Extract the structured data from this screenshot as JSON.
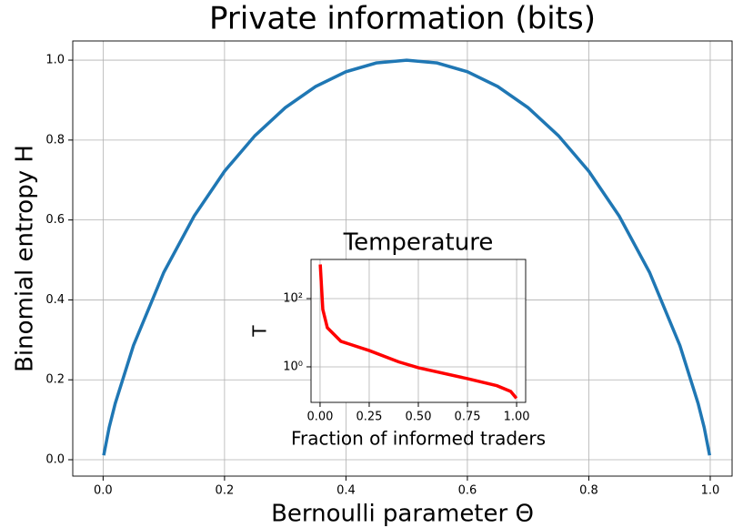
{
  "chart_data": [
    {
      "type": "line",
      "title": "Private information (bits)",
      "xlabel": "Bernoulli parameter Θ",
      "ylabel": "Binomial entropy H",
      "x": [
        0.001,
        0.01,
        0.02,
        0.05,
        0.1,
        0.15,
        0.2,
        0.25,
        0.3,
        0.35,
        0.4,
        0.45,
        0.5,
        0.55,
        0.6,
        0.65,
        0.7,
        0.75,
        0.8,
        0.85,
        0.9,
        0.95,
        0.98,
        0.99,
        0.999
      ],
      "values": [
        0.011,
        0.081,
        0.141,
        0.286,
        0.469,
        0.61,
        0.722,
        0.811,
        0.881,
        0.934,
        0.971,
        0.993,
        1.0,
        0.993,
        0.971,
        0.934,
        0.881,
        0.811,
        0.722,
        0.61,
        0.469,
        0.286,
        0.141,
        0.081,
        0.011
      ],
      "color": "#1f77b4",
      "grid": true,
      "xlim": [
        -0.05,
        1.036
      ],
      "ylim": [
        -0.041,
        1.048
      ],
      "xticks": [
        {
          "value": 0,
          "label": "0.0"
        },
        0.2,
        0.4,
        0.6,
        0.8,
        {
          "value": 1,
          "label": "1.0"
        }
      ],
      "yticks": [
        {
          "value": 0,
          "label": "0.0"
        },
        0.2,
        0.4,
        0.6,
        0.8,
        {
          "value": 1,
          "label": "1.0"
        }
      ]
    },
    {
      "type": "line",
      "title": "Temperature",
      "xlabel": "Fraction of informed traders",
      "ylabel": "T",
      "x": [
        0.001,
        0.014,
        0.037,
        0.106,
        0.25,
        0.4,
        0.5,
        0.75,
        0.9,
        0.97,
        0.999
      ],
      "values": [
        1000,
        48,
        14,
        5.6,
        3.0,
        1.4,
        0.94,
        0.45,
        0.28,
        0.19,
        0.12
      ],
      "color": "#ff0000",
      "grid": true,
      "ylog": true,
      "xlim": [
        -0.046,
        1.046
      ],
      "ylim": [
        0.091,
        1400
      ],
      "xticks": [
        {
          "value": 0,
          "label": "0.00"
        },
        0.25,
        {
          "value": 0.5,
          "label": "0.50"
        },
        0.75,
        {
          "value": 1,
          "label": "1.00"
        }
      ],
      "yticks": [
        {
          "value": 1,
          "label": "10⁰"
        },
        {
          "value": 100,
          "label": "10²"
        }
      ]
    }
  ]
}
